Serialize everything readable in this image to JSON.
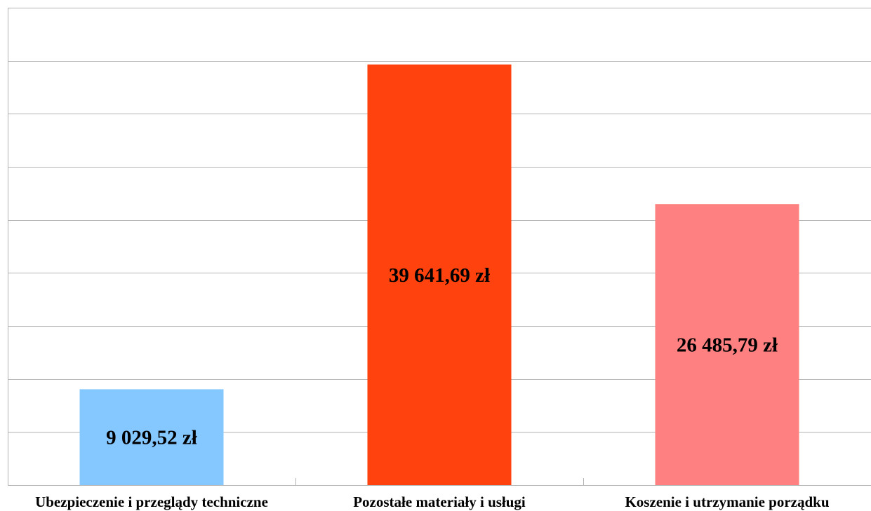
{
  "chart_data": {
    "type": "bar",
    "categories": [
      "Ubezpieczenie i przeglądy techniczne",
      "Pozostałe materiały i usługi",
      "Koszenie i utrzymanie porządku"
    ],
    "values": [
      9029.52,
      39641.69,
      26485.79
    ],
    "value_labels": [
      "9 029,52 zł",
      "39 641,69 zł",
      "26 485,79 zł"
    ],
    "colors": [
      "#85C8FF",
      "#FF420E",
      "#FF8080"
    ],
    "ylim": [
      0,
      45000
    ],
    "y_gridline_step": 5000,
    "grid": true,
    "legend": "none",
    "title": "",
    "xlabel": "",
    "ylabel": ""
  }
}
